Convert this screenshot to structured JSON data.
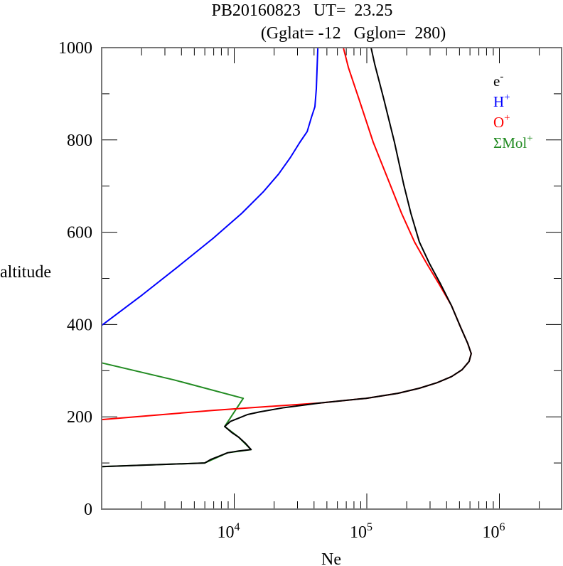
{
  "chart_data": {
    "type": "line",
    "title_line1": "PB20160823   UT=  23.25",
    "title_line2": "(Gglat= -12   Gglon=  280)",
    "xlabel": "Ne",
    "ylabel": "altitude",
    "xscale": "log",
    "xlim": [
      1000,
      3000000
    ],
    "ylim": [
      0,
      1000
    ],
    "yticks": [
      "0",
      "200",
      "400",
      "600",
      "800",
      "1000"
    ],
    "xticks": [
      {
        "base": "10",
        "exp": "4"
      },
      {
        "base": "10",
        "exp": "5"
      },
      {
        "base": "10",
        "exp": "6"
      }
    ],
    "legend_position": "top-right",
    "series": [
      {
        "name": "e",
        "sup": "-",
        "color": "#000000",
        "points": [
          [
            1000,
            92
          ],
          [
            5990,
            100
          ],
          [
            6700,
            108
          ],
          [
            7570,
            114
          ],
          [
            8890,
            122
          ],
          [
            10800,
            126
          ],
          [
            13400,
            129
          ],
          [
            12200,
            142
          ],
          [
            10800,
            156
          ],
          [
            9580,
            166
          ],
          [
            8470,
            179
          ],
          [
            9350,
            190
          ],
          [
            10800,
            197
          ],
          [
            12600,
            205
          ],
          [
            15700,
            211
          ],
          [
            23900,
            220
          ],
          [
            44300,
            230
          ],
          [
            98800,
            240
          ],
          [
            172000,
            251
          ],
          [
            249000,
            262
          ],
          [
            339000,
            274
          ],
          [
            435000,
            287
          ],
          [
            523000,
            302
          ],
          [
            591000,
            320
          ],
          [
            613000,
            337
          ],
          [
            577000,
            359
          ],
          [
            510000,
            394
          ],
          [
            435000,
            441
          ],
          [
            361000,
            487
          ],
          [
            296000,
            533
          ],
          [
            249000,
            579
          ],
          [
            215000,
            641
          ],
          [
            190000,
            703
          ],
          [
            161700,
            795
          ],
          [
            134500,
            888
          ],
          [
            114500,
            965
          ],
          [
            107700,
            1000
          ]
        ]
      },
      {
        "name": "H",
        "sup": "+",
        "color": "#0000ff",
        "points": [
          [
            1000,
            398
          ],
          [
            2020,
            464
          ],
          [
            3750,
            525
          ],
          [
            6950,
            587
          ],
          [
            11400,
            641
          ],
          [
            16500,
            687
          ],
          [
            21600,
            726
          ],
          [
            26400,
            761
          ],
          [
            31300,
            795
          ],
          [
            35500,
            818
          ],
          [
            38200,
            849
          ],
          [
            40600,
            872
          ],
          [
            41600,
            911
          ],
          [
            42100,
            949
          ],
          [
            42700,
            1000
          ]
        ]
      },
      {
        "name": "O",
        "sup": "+",
        "color": "#ff0000",
        "points": [
          [
            1000,
            194
          ],
          [
            6950,
            214
          ],
          [
            44300,
            230
          ],
          [
            98800,
            240
          ],
          [
            172000,
            251
          ],
          [
            249000,
            262
          ],
          [
            339000,
            274
          ],
          [
            435000,
            287
          ],
          [
            523000,
            302
          ],
          [
            591000,
            320
          ],
          [
            613000,
            337
          ],
          [
            577000,
            359
          ],
          [
            510000,
            394
          ],
          [
            435000,
            441
          ],
          [
            352000,
            487
          ],
          [
            282000,
            533
          ],
          [
            229000,
            579
          ],
          [
            183000,
            641
          ],
          [
            143000,
            718
          ],
          [
            111700,
            795
          ],
          [
            87400,
            888
          ],
          [
            72600,
            957
          ],
          [
            66500,
            1000
          ]
        ]
      },
      {
        "name": "ΣMol",
        "sup": "+",
        "color": "#228b22",
        "points": [
          [
            1000,
            317
          ],
          [
            3520,
            280
          ],
          [
            11700,
            240
          ],
          [
            8470,
            179
          ],
          [
            10800,
            156
          ],
          [
            13400,
            129
          ],
          [
            8890,
            122
          ],
          [
            5990,
            100
          ],
          [
            1000,
            92
          ]
        ]
      }
    ]
  }
}
